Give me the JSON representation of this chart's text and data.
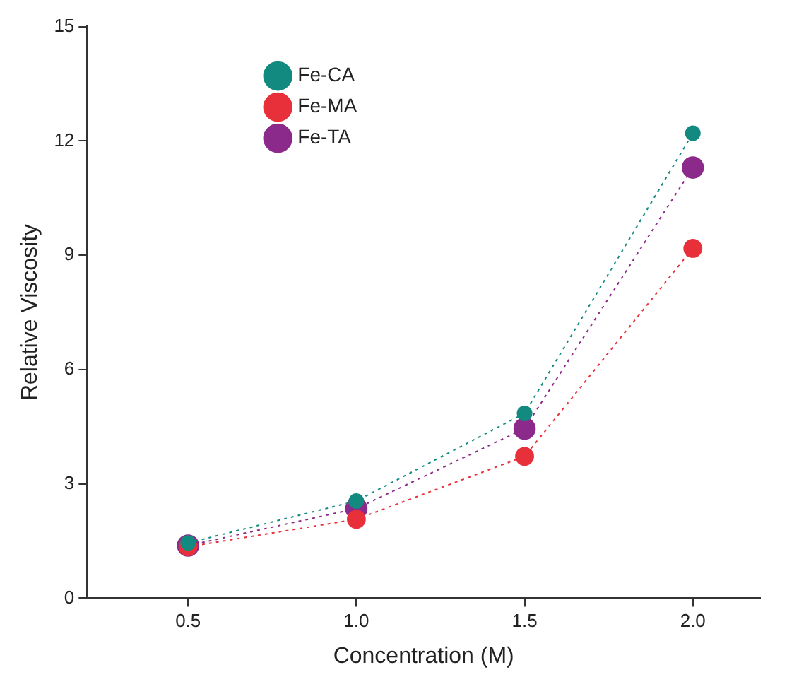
{
  "chart_data": {
    "type": "line",
    "xlabel": "Concentration (M)",
    "ylabel": "Relative Viscosity",
    "x": [
      0.5,
      1.0,
      1.5,
      2.0
    ],
    "series": [
      {
        "name": "Fe-CA",
        "color": "#138a80",
        "values": [
          1.45,
          2.55,
          4.85,
          12.2
        ]
      },
      {
        "name": "Fe-MA",
        "color": "#e8303a",
        "values": [
          1.35,
          2.07,
          3.72,
          9.18
        ]
      },
      {
        "name": "Fe-TA",
        "color": "#8b2a8b",
        "values": [
          1.38,
          2.35,
          4.45,
          11.3
        ]
      }
    ],
    "xlim": [
      0.2,
      2.2
    ],
    "xticks": [
      {
        "value": 0.5,
        "label": "0.5"
      },
      {
        "value": 1.0,
        "label": "1.0"
      },
      {
        "value": 1.5,
        "label": "1.5"
      },
      {
        "value": 2.0,
        "label": "2.0"
      }
    ],
    "ylim": [
      0,
      15
    ],
    "yticks": [
      0,
      3,
      6,
      9,
      12,
      15
    ],
    "grid": false,
    "legend": "top left",
    "marker": "circle",
    "line_style": "dotted"
  }
}
